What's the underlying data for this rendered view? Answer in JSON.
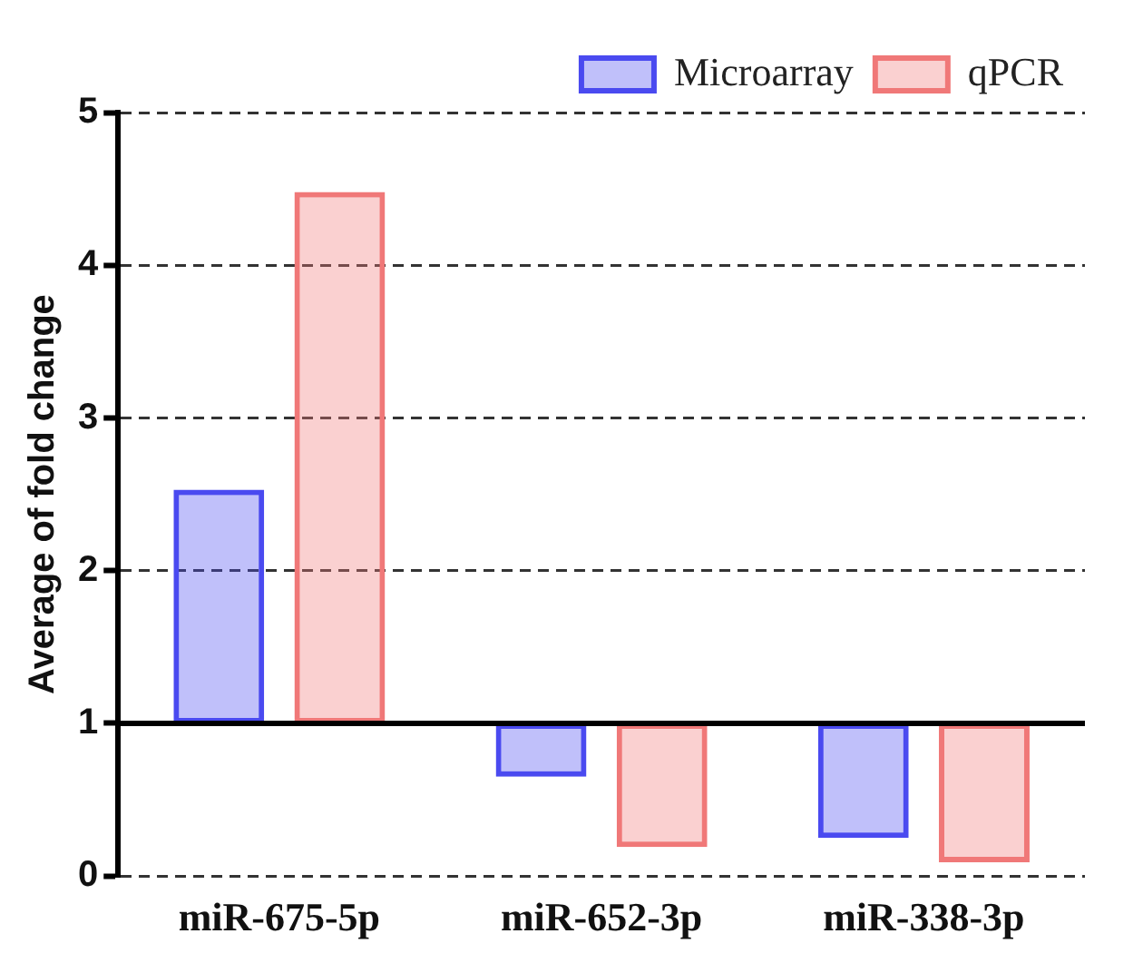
{
  "chart_data": {
    "type": "bar",
    "ylabel": "Average of fold change",
    "categories": [
      "miR-675-5p",
      "miR-652-3p",
      "miR-338-3p"
    ],
    "series": [
      {
        "name": "Microarray",
        "color": "#4a4af0",
        "base": [
          1,
          1,
          1
        ],
        "values": [
          1.53,
          -0.35,
          -0.75
        ]
      },
      {
        "name": "qPCR",
        "color": "#f07878",
        "base": [
          1,
          1,
          1
        ],
        "values": [
          3.48,
          -0.81,
          -0.91
        ]
      }
    ],
    "ylim": [
      0,
      5
    ],
    "yticks": [
      0,
      1,
      2,
      3,
      4,
      5
    ],
    "grid": "y",
    "legend": "top right",
    "ref_lines": [
      {
        "axis": "y",
        "value": 1,
        "color": "#000000",
        "line_style": "solid"
      }
    ]
  }
}
